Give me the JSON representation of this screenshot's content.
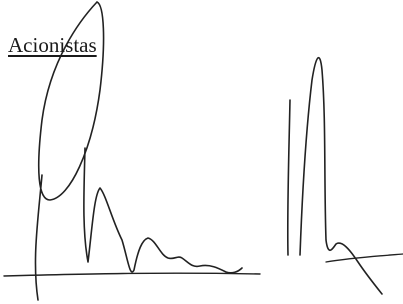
{
  "heading": "Acionistas"
}
